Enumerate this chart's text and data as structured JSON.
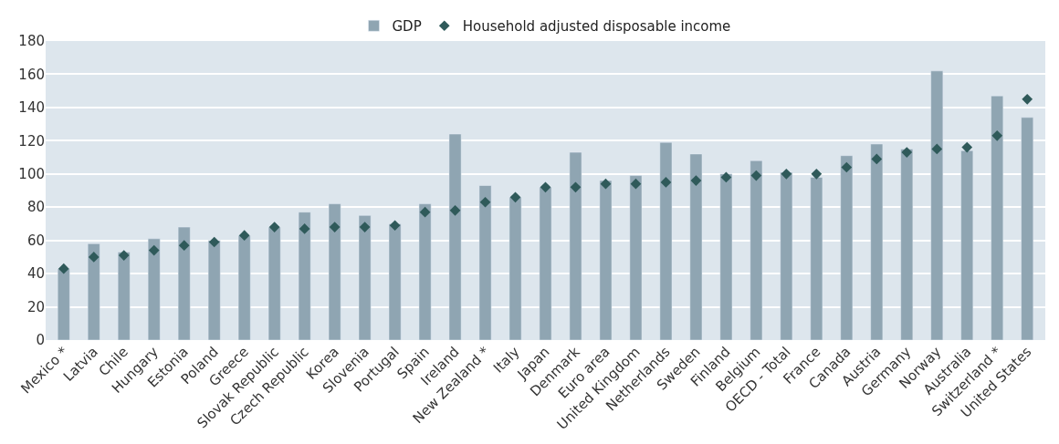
{
  "chart_data": {
    "type": "bar",
    "categories": [
      "Mexico *",
      "Latvia",
      "Chile",
      "Hungary",
      "Estonia",
      "Poland",
      "Greece",
      "Slovak Republic",
      "Czech Republic",
      "Korea",
      "Slovenia",
      "Portugal",
      "Spain",
      "Ireland",
      "New Zealand *",
      "Italy",
      "Japan",
      "Denmark",
      "Euro area",
      "United Kingdom",
      "Netherlands",
      "Sweden",
      "Finland",
      "Belgium",
      "OECD - Total",
      "France",
      "Canada",
      "Austria",
      "Germany",
      "Norway",
      "Australia",
      "Switzerland *",
      "United States"
    ],
    "series": [
      {
        "name": "GDP",
        "color": "#8fa5b2",
        "values": [
          43,
          58,
          53,
          61,
          68,
          60,
          63,
          68,
          77,
          82,
          75,
          70,
          82,
          124,
          93,
          86,
          92,
          113,
          96,
          99,
          119,
          112,
          100,
          108,
          101,
          98,
          111,
          118,
          115,
          162,
          114,
          147,
          134
        ]
      },
      {
        "name": "Household adjusted disposable income",
        "type": "scatter",
        "marker": "diamond",
        "color": "#2f5a5a",
        "values": [
          43,
          50,
          51,
          54,
          57,
          59,
          63,
          68,
          67,
          68,
          68,
          69,
          77,
          78,
          83,
          86,
          92,
          92,
          94,
          94,
          95,
          96,
          98,
          99,
          100,
          100,
          104,
          109,
          113,
          115,
          116,
          123,
          145
        ]
      }
    ],
    "ylim": [
      0,
      180
    ],
    "yticks": [
      0,
      20,
      40,
      60,
      80,
      100,
      120,
      140,
      160,
      180
    ],
    "grid": "y",
    "legend": "top"
  }
}
